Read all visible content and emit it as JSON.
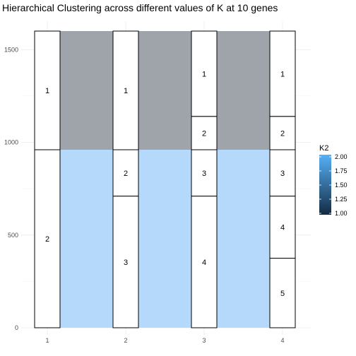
{
  "chart_data": {
    "type": "alluvial",
    "title": "Hierarchical Clustering across different values of K at 10 genes",
    "xlabel": "",
    "ylabel": "",
    "ylim": [
      0,
      1600
    ],
    "y_ticks": [
      "0",
      "500",
      "1000",
      "1500"
    ],
    "x_ticks": [
      "1",
      "2",
      "3",
      "4"
    ],
    "grid": true,
    "stacks": [
      {
        "x": "1",
        "clusters": [
          {
            "label": "2",
            "size": 960
          },
          {
            "label": "1",
            "size": 640
          }
        ]
      },
      {
        "x": "2",
        "clusters": [
          {
            "label": "3",
            "size": 710
          },
          {
            "label": "2",
            "size": 250
          },
          {
            "label": "1",
            "size": 640
          }
        ]
      },
      {
        "x": "3",
        "clusters": [
          {
            "label": "4",
            "size": 710
          },
          {
            "label": "3",
            "size": 250
          },
          {
            "label": "2",
            "size": 180
          },
          {
            "label": "1",
            "size": 460
          }
        ]
      },
      {
        "x": "4",
        "clusters": [
          {
            "label": "5",
            "size": 375
          },
          {
            "label": "4",
            "size": 335
          },
          {
            "label": "3",
            "size": 250
          },
          {
            "label": "2",
            "size": 180
          },
          {
            "label": "1",
            "size": 460
          }
        ]
      }
    ],
    "flows": [
      {
        "k2": 2,
        "start": 0,
        "end": 960,
        "color": "#b5d9fb"
      },
      {
        "k2": 1,
        "start": 960,
        "end": 1600,
        "color": "#9fa4aa"
      }
    ],
    "legend": {
      "title": "K2",
      "position": "right",
      "min": 1.0,
      "max": 2.0,
      "ticks": [
        "2.00",
        "1.75",
        "1.50",
        "1.25",
        "1.00"
      ],
      "color_low": "#132b43",
      "color_high": "#56b1f7"
    }
  }
}
